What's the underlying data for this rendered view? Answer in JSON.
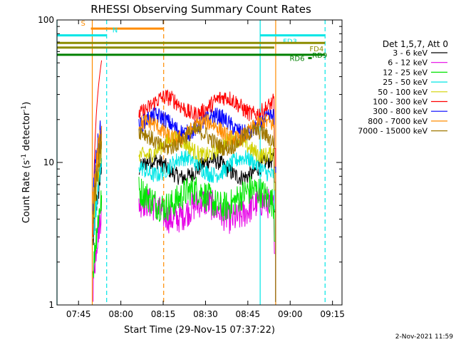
{
  "chart_data": {
    "type": "line",
    "title": "RHESSI Observing Summary Count Rates",
    "xlabel": "Start Time (29-Nov-15 07:37:22)",
    "ylabel_main": "Count Rate (s",
    "ylabel_sup1": "-1",
    "ylabel_mid": " detector",
    "ylabel_sup2": "-1",
    "ylabel_end": ")",
    "x_unit": "minutes since 07:37:22",
    "xlim": [
      0,
      101
    ],
    "ylim": [
      1,
      100
    ],
    "yscale": "log",
    "x_ticks": [
      {
        "v": 7.63,
        "label": "07:45"
      },
      {
        "v": 22.63,
        "label": "08:00"
      },
      {
        "v": 37.63,
        "label": "08:15"
      },
      {
        "v": 52.63,
        "label": "08:30"
      },
      {
        "v": 67.63,
        "label": "08:45"
      },
      {
        "v": 82.63,
        "label": "09:00"
      },
      {
        "v": 97.63,
        "label": "09:15"
      }
    ],
    "y_ticks": [
      {
        "v": 1,
        "label": "1"
      },
      {
        "v": 10,
        "label": "10"
      },
      {
        "v": 100,
        "label": "100"
      }
    ],
    "legend_header": "Det 1,5,7, Att 0",
    "legend_position": "right",
    "series": [
      {
        "name": "3 - 6 keV",
        "color": "#000000",
        "level": 9.0
      },
      {
        "name": "6 - 12 keV",
        "color": "#e600e6",
        "level": 4.6
      },
      {
        "name": "12 - 25 keV",
        "color": "#00e600",
        "level": 5.6
      },
      {
        "name": "25 - 50 keV",
        "color": "#00e6e6",
        "level": 9.4
      },
      {
        "name": "50 - 100 keV",
        "color": "#d2d200",
        "level": 12.8
      },
      {
        "name": "100 - 300 keV",
        "color": "#ff0000",
        "level": 25.0
      },
      {
        "name": "300 - 800 keV",
        "color": "#0000ff",
        "level": 18.5
      },
      {
        "name": "800 - 7000 keV",
        "color": "#ff8c00",
        "level": 16.8
      },
      {
        "name": "7000 - 15000 keV",
        "color": "#a07800",
        "level": 14.5
      }
    ],
    "flare_rise": {
      "x_start": 12.8,
      "x_end": 15.8,
      "peak": 52
    },
    "data_window": {
      "x_start": 29.0,
      "x_end": 77.5
    },
    "orbit_flags": [
      {
        "label": "S",
        "color": "#ff8c00",
        "x_start": 12.0,
        "x_end": 37.8,
        "y": 87
      },
      {
        "label": "N",
        "color": "#00e6e6",
        "x_start": 0.0,
        "x_end": 17.6,
        "y": 78
      },
      {
        "label": "FD3",
        "color": "#00e6e6",
        "x_start": 72.0,
        "x_end": 95.0,
        "y": 78
      },
      {
        "label": "FD4",
        "color": "#8c8c00",
        "x_start": 0.0,
        "x_end": 95.0,
        "y": 69
      },
      {
        "label": "FD4",
        "color": "#8c8c00",
        "x_start": 0.0,
        "x_end": 77.0,
        "y": 64
      },
      {
        "label": "RD9",
        "color": "#008000",
        "x_start": 0.0,
        "x_end": 95.0,
        "y": 57
      },
      {
        "label": "RD6",
        "color": "#008000",
        "x_start": 89.0,
        "x_end": 90.3,
        "y": 54
      }
    ],
    "vertical_markers": [
      {
        "x": 0.0,
        "color": "#00e6e6",
        "style": "solid"
      },
      {
        "x": 12.5,
        "color": "#ff8c00",
        "style": "solid"
      },
      {
        "x": 17.6,
        "color": "#00e6e6",
        "style": "dashed"
      },
      {
        "x": 37.8,
        "color": "#ff8c00",
        "style": "dashed"
      },
      {
        "x": 72.0,
        "color": "#00e6e6",
        "style": "solid"
      },
      {
        "x": 77.5,
        "color": "#ff8c00",
        "style": "solid"
      },
      {
        "x": 95.0,
        "color": "#00e6e6",
        "style": "dashed"
      }
    ],
    "grid": false
  },
  "footer": {
    "date_stamp": "2-Nov-2021 11:59"
  }
}
